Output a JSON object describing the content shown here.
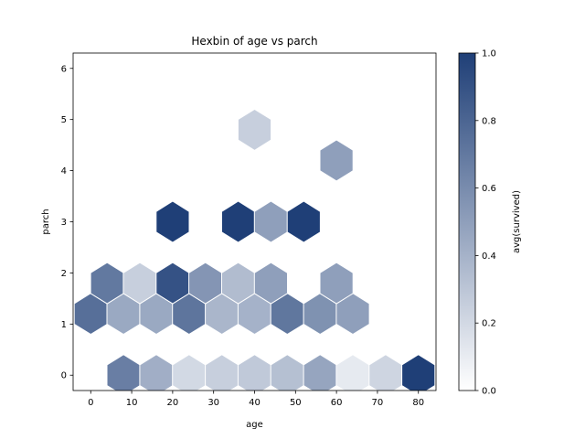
{
  "chart_data": {
    "type": "hexbin",
    "title": "Hexbin of age vs parch",
    "xlabel": "age",
    "ylabel": "parch",
    "xlim": [
      -4.3,
      84.3
    ],
    "ylim": [
      -0.3,
      6.3
    ],
    "xticks": [
      0,
      10,
      20,
      30,
      40,
      50,
      60,
      70,
      80
    ],
    "yticks": [
      0,
      1,
      2,
      3,
      4,
      5,
      6
    ],
    "colorbar": {
      "label": "avg(survived)",
      "range": [
        0.0,
        1.0
      ],
      "ticks": [
        "0.0",
        "0.2",
        "0.4",
        "0.6",
        "0.8",
        "1.0"
      ],
      "color_low": "#ffffff",
      "color_high": "#1f3f77"
    },
    "grid": false,
    "bins": [
      {
        "x": 8,
        "y": 0,
        "value": 0.67
      },
      {
        "x": 16,
        "y": 0,
        "value": 0.42
      },
      {
        "x": 24,
        "y": 0,
        "value": 0.2
      },
      {
        "x": 32,
        "y": 0,
        "value": 0.25
      },
      {
        "x": 40,
        "y": 0,
        "value": 0.28
      },
      {
        "x": 48,
        "y": 0,
        "value": 0.33
      },
      {
        "x": 56,
        "y": 0,
        "value": 0.47
      },
      {
        "x": 64,
        "y": 0,
        "value": 0.11
      },
      {
        "x": 72,
        "y": 0,
        "value": 0.22
      },
      {
        "x": 80,
        "y": 0,
        "value": 1.0
      },
      {
        "x": 0,
        "y": 1.2,
        "value": 0.75
      },
      {
        "x": 8,
        "y": 1.2,
        "value": 0.45
      },
      {
        "x": 16,
        "y": 1.2,
        "value": 0.45
      },
      {
        "x": 24,
        "y": 1.2,
        "value": 0.72
      },
      {
        "x": 32,
        "y": 1.2,
        "value": 0.38
      },
      {
        "x": 40,
        "y": 1.2,
        "value": 0.4
      },
      {
        "x": 48,
        "y": 1.2,
        "value": 0.71
      },
      {
        "x": 56,
        "y": 1.2,
        "value": 0.57
      },
      {
        "x": 64,
        "y": 1.2,
        "value": 0.5
      },
      {
        "x": 4,
        "y": 1.8,
        "value": 0.7
      },
      {
        "x": 12,
        "y": 1.8,
        "value": 0.25
      },
      {
        "x": 20,
        "y": 1.8,
        "value": 0.9
      },
      {
        "x": 28,
        "y": 1.8,
        "value": 0.55
      },
      {
        "x": 36,
        "y": 1.8,
        "value": 0.35
      },
      {
        "x": 44,
        "y": 1.8,
        "value": 0.5
      },
      {
        "x": 60,
        "y": 1.8,
        "value": 0.5
      },
      {
        "x": 20,
        "y": 3.0,
        "value": 1.0
      },
      {
        "x": 36,
        "y": 3.0,
        "value": 1.0
      },
      {
        "x": 44,
        "y": 3.0,
        "value": 0.5
      },
      {
        "x": 52,
        "y": 3.0,
        "value": 1.0
      },
      {
        "x": 60,
        "y": 4.2,
        "value": 0.5
      },
      {
        "x": 40,
        "y": 4.8,
        "value": 0.25
      }
    ]
  }
}
